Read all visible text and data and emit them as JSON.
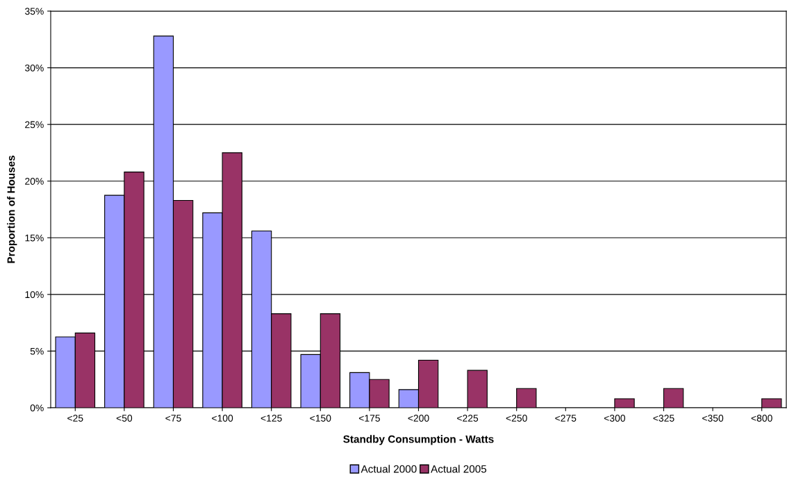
{
  "chart_data": {
    "type": "bar",
    "xlabel": "Standby Consumption - Watts",
    "ylabel": "Proportion of Houses",
    "categories": [
      "<25",
      "<50",
      "<75",
      "<100",
      "<125",
      "<150",
      "<175",
      "<200",
      "<225",
      "<250",
      "<275",
      "<300",
      "<325",
      "<350",
      "<800"
    ],
    "series": [
      {
        "name": "Actual 2000",
        "color": "#9999ff",
        "values": [
          6.25,
          18.75,
          32.8,
          17.2,
          15.6,
          4.7,
          3.1,
          1.6,
          0,
          0,
          0,
          0,
          0,
          0,
          0
        ]
      },
      {
        "name": "Actual 2005",
        "color": "#993366",
        "values": [
          6.6,
          20.8,
          18.3,
          22.5,
          8.3,
          8.3,
          2.5,
          4.2,
          3.3,
          1.7,
          0,
          0.8,
          1.7,
          0,
          0.8
        ]
      }
    ],
    "ylim": [
      0,
      35
    ],
    "yticks": [
      {
        "value": 0,
        "label": "0%"
      },
      {
        "value": 5,
        "label": "5%"
      },
      {
        "value": 10,
        "label": "10%"
      },
      {
        "value": 15,
        "label": "15%"
      },
      {
        "value": 20,
        "label": "20%"
      },
      {
        "value": 25,
        "label": "25%"
      },
      {
        "value": 30,
        "label": "30%"
      },
      {
        "value": 35,
        "label": "35%"
      }
    ],
    "grid": "y",
    "legend": "bottom"
  }
}
